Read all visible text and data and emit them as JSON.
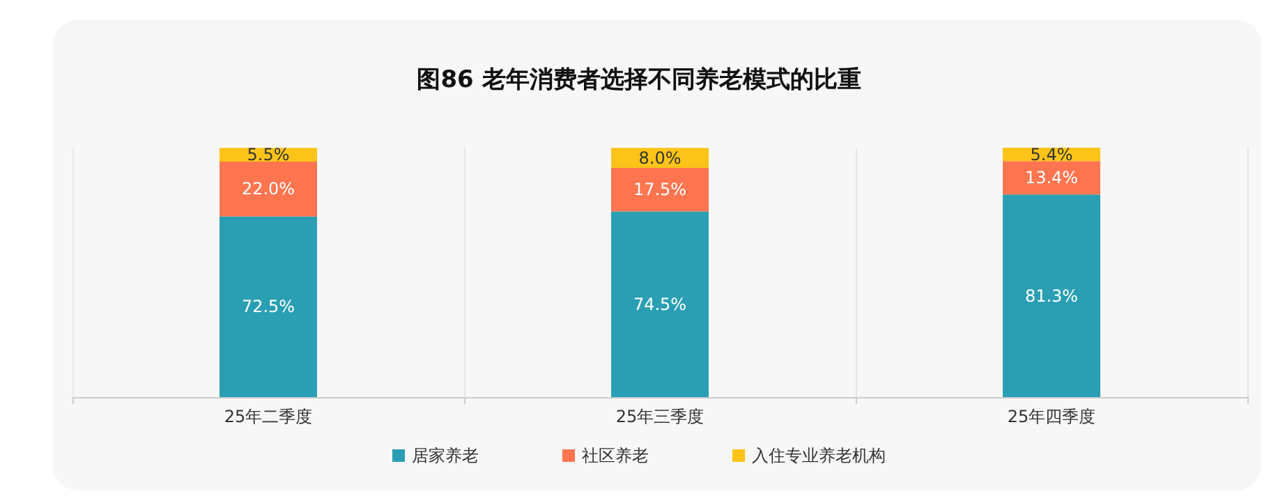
{
  "chart_data": {
    "type": "bar",
    "title": "图86 老年消费者选择不同养老模式的比重",
    "categories": [
      "25年二季度",
      "25年三季度",
      "25年四季度"
    ],
    "stacked": true,
    "grid": "x",
    "legend": "bottom",
    "series": [
      {
        "name": "居家养老",
        "color": "#2a9fb3",
        "values": [
          72.5,
          74.5,
          81.3
        ],
        "value_labels": [
          "72.5%",
          "74.5%",
          "81.3%"
        ]
      },
      {
        "name": "社区养老",
        "color": "#ff7550",
        "values": [
          22.0,
          17.5,
          13.4
        ],
        "value_labels": [
          "22.0%",
          "17.5%",
          "13.4%"
        ]
      },
      {
        "name": "入住专业养老机构",
        "color": "#fcc419",
        "values": [
          5.5,
          8.0,
          5.4
        ],
        "value_labels": [
          "5.5%",
          "8.0%",
          "5.4%"
        ]
      }
    ]
  }
}
